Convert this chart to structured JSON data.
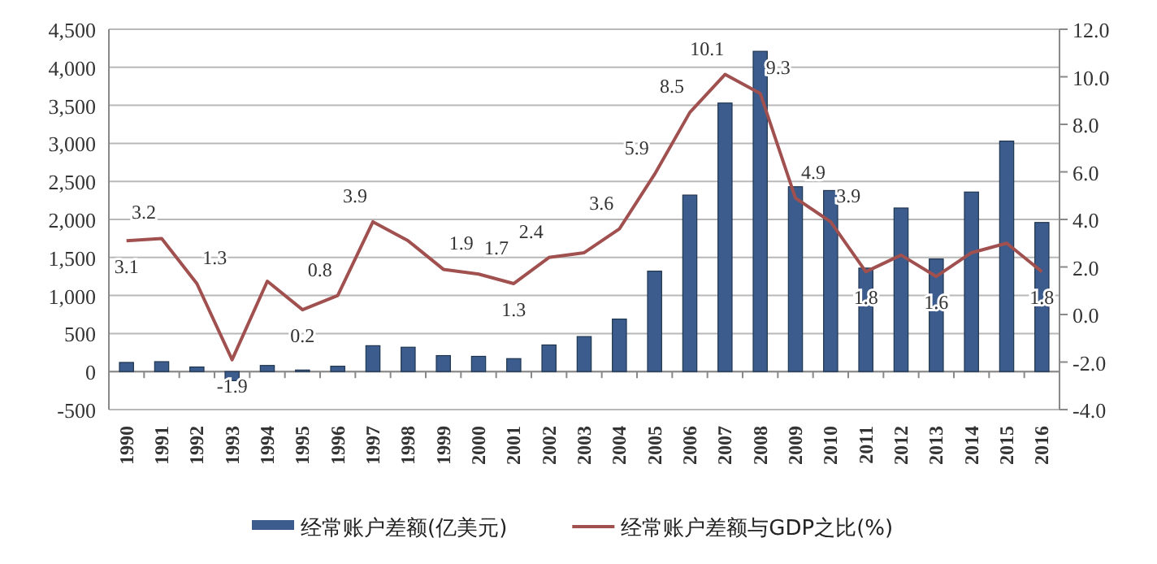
{
  "chart_data": {
    "type": "bar",
    "categories": [
      "1990",
      "1991",
      "1992",
      "1993",
      "1994",
      "1995",
      "1996",
      "1997",
      "1998",
      "1999",
      "2000",
      "2001",
      "2002",
      "2003",
      "2004",
      "2005",
      "2006",
      "2007",
      "2008",
      "2009",
      "2010",
      "2011",
      "2012",
      "2013",
      "2014",
      "2015",
      "2016"
    ],
    "series": [
      {
        "name": "经常账户差额(亿美元)",
        "color": "#3b5c8c",
        "values": [
          120,
          130,
          60,
          -120,
          80,
          20,
          70,
          340,
          320,
          210,
          200,
          170,
          350,
          460,
          690,
          1320,
          2320,
          3530,
          4210,
          2430,
          2380,
          1360,
          2150,
          1480,
          2360,
          3030,
          1960
        ]
      },
      {
        "name": "经常账户差额与GDP之比(%)",
        "type": "line",
        "axis": "y2",
        "color": "#a0504f",
        "values": [
          3.1,
          3.2,
          1.3,
          -1.9,
          1.4,
          0.2,
          0.8,
          3.9,
          3.1,
          1.9,
          1.7,
          1.3,
          2.4,
          2.6,
          3.6,
          5.9,
          8.5,
          10.1,
          9.3,
          4.9,
          3.9,
          1.8,
          2.5,
          1.6,
          2.6,
          3.0,
          1.8
        ],
        "value_labels": [
          "3.1",
          "3.2",
          "1.3",
          "-1.9",
          null,
          "0.2",
          "0.8",
          "3.9",
          null,
          "1.9",
          "1.7",
          "1.3",
          "2.4",
          null,
          "3.6",
          "5.9",
          "8.5",
          "10.1",
          "9.3",
          "4.9",
          "3.9",
          "1.8",
          null,
          "1.6",
          null,
          null,
          "1.8"
        ]
      }
    ],
    "ylim": [
      -500,
      4500
    ],
    "yticks": [
      {
        "value": -500,
        "label": "-500"
      },
      0,
      500,
      {
        "value": 1000,
        "label": "1,000"
      },
      {
        "value": 1500,
        "label": "1,500"
      },
      {
        "value": 2000,
        "label": "2,000"
      },
      {
        "value": 2500,
        "label": "2,500"
      },
      {
        "value": 3000,
        "label": "3,000"
      },
      {
        "value": 3500,
        "label": "3,500"
      },
      {
        "value": 4000,
        "label": "4,000"
      },
      {
        "value": 4500,
        "label": "4,500"
      }
    ],
    "y2lim": [
      -4,
      12
    ],
    "y2ticks": [
      {
        "value": -4,
        "label": "-4.0"
      },
      {
        "value": -2,
        "label": "-2.0"
      },
      {
        "value": 0,
        "label": "0.0"
      },
      {
        "value": 2,
        "label": "2.0"
      },
      {
        "value": 4,
        "label": "4.0"
      },
      {
        "value": 6,
        "label": "6.0"
      },
      {
        "value": 8,
        "label": "8.0"
      },
      {
        "value": 10,
        "label": "10.0"
      },
      {
        "value": 12,
        "label": "12.0"
      }
    ],
    "grid": "y",
    "legend": "bottom",
    "marker": "none"
  }
}
